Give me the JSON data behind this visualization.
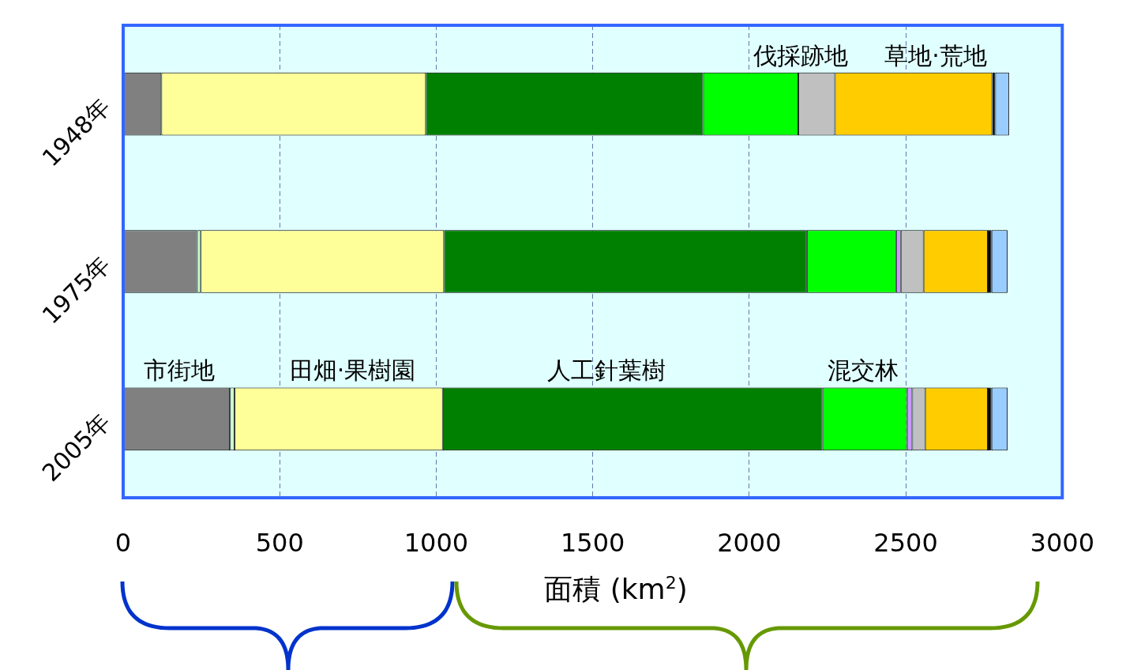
{
  "chart_data": {
    "type": "bar",
    "orientation": "horizontal",
    "stacked": true,
    "xlabel": "面積 (km$^{2}$)",
    "categories": [
      "1948年",
      "1975年",
      "2005年"
    ],
    "series": [
      {
        "color": "#808080",
        "values": [
          122,
          236,
          341
        ]
      },
      {
        "color": "#ccffcc",
        "values": [
          0,
          12,
          15
        ]
      },
      {
        "color": "#ffff99",
        "values": [
          845,
          777,
          665
        ]
      },
      {
        "color": "#008000",
        "values": [
          886,
          1159,
          1213
        ]
      },
      {
        "color": "#00ff00",
        "values": [
          304,
          285,
          270
        ]
      },
      {
        "color": "#cc99ff",
        "values": [
          0,
          15,
          17
        ]
      },
      {
        "color": "#c0c0c0",
        "values": [
          117,
          73,
          41
        ]
      },
      {
        "color": "#ffcc00",
        "values": [
          502,
          205,
          200
        ]
      },
      {
        "color": "#000000",
        "values": [
          10,
          12,
          12
        ]
      },
      {
        "color": "#99ccff",
        "values": [
          44,
          51,
          51
        ]
      }
    ],
    "annotations": [
      {
        "text": "市街地",
        "x": 180,
        "y": "2005年"
      },
      {
        "text": "田畑·果樹園",
        "x": 733,
        "y": "2005年"
      },
      {
        "text": "人工針葉樹",
        "x": 1543,
        "y": "2005年"
      },
      {
        "text": "混交林",
        "x": 2364,
        "y": "2005年"
      },
      {
        "text": "伐採跡地",
        "x": 2165,
        "y": "1948年"
      },
      {
        "text": "草地·荒地",
        "x": 2596,
        "y": "1948年"
      }
    ],
    "xlim": [
      0,
      3000
    ],
    "xticks": [
      0,
      500,
      1000,
      1500,
      2000,
      2500,
      3000
    ],
    "grid": "x",
    "legend": false
  }
}
